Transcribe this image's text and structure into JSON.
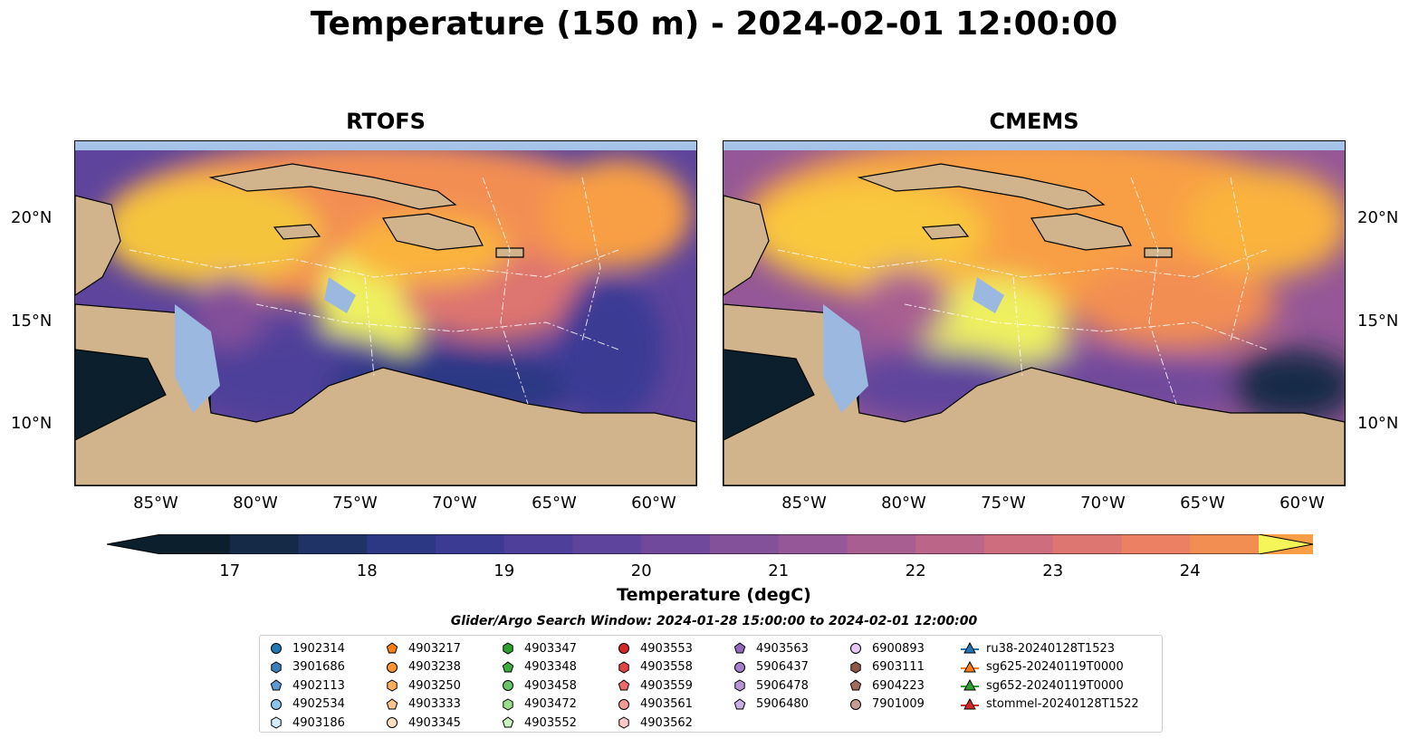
{
  "title": "Temperature (150 m) - 2024-02-01 12:00:00",
  "panels": [
    {
      "title": "RTOFS"
    },
    {
      "title": "CMEMS"
    }
  ],
  "x_ticks": [
    "85°W",
    "80°W",
    "75°W",
    "70°W",
    "65°W",
    "60°W"
  ],
  "y_ticks": [
    "20°N",
    "15°N",
    "10°N"
  ],
  "colorbar": {
    "label": "Temperature (degC)",
    "ticks": [
      "17",
      "18",
      "19",
      "20",
      "21",
      "22",
      "23",
      "24"
    ],
    "min": 16.5,
    "max": 24.5,
    "step": 0.5,
    "colors": [
      "#0c1f2c",
      "#152a47",
      "#1f3367",
      "#2c3884",
      "#3b3b94",
      "#4d3f9a",
      "#5e449c",
      "#71499c",
      "#83509a",
      "#955797",
      "#a85e91",
      "#bb6589",
      "#cd6d7e",
      "#dd7570",
      "#eb8063",
      "#f38e52",
      "#f89f45",
      "#fab33d",
      "#f9c83d",
      "#f5dd4a",
      "#eef060"
    ],
    "extend_low_color": "#0c1f2c",
    "extend_high_color": "#f5f55a"
  },
  "search_window": "Glider/Argo Search Window: 2024-01-28 15:00:00 to 2024-02-01 12:00:00",
  "legend": [
    [
      {
        "label": "1902314",
        "marker": "circle",
        "color": "#1f77b4"
      },
      {
        "label": "3901686",
        "marker": "hexagon",
        "color": "#3c7eb8"
      },
      {
        "label": "4902113",
        "marker": "pentagon",
        "color": "#5b9bd1"
      },
      {
        "label": "4902534",
        "marker": "circle",
        "color": "#8cc3ec"
      },
      {
        "label": "4903186",
        "marker": "hexagon",
        "color": "#d6ecfb"
      }
    ],
    [
      {
        "label": "4903217",
        "marker": "pentagon",
        "color": "#ff7f0e"
      },
      {
        "label": "4903238",
        "marker": "circle",
        "color": "#ff9433"
      },
      {
        "label": "4903250",
        "marker": "hexagon",
        "color": "#ffae5c"
      },
      {
        "label": "4903333",
        "marker": "pentagon",
        "color": "#ffc48c"
      },
      {
        "label": "4903345",
        "marker": "circle",
        "color": "#ffe0c2"
      }
    ],
    [
      {
        "label": "4903347",
        "marker": "hexagon",
        "color": "#2ca02c"
      },
      {
        "label": "4903348",
        "marker": "pentagon",
        "color": "#3cae3c"
      },
      {
        "label": "4903458",
        "marker": "circle",
        "color": "#66c466"
      },
      {
        "label": "4903472",
        "marker": "hexagon",
        "color": "#98df8a"
      },
      {
        "label": "4903552",
        "marker": "pentagon",
        "color": "#ccf2c4"
      }
    ],
    [
      {
        "label": "4903553",
        "marker": "circle",
        "color": "#d62728"
      },
      {
        "label": "4903558",
        "marker": "hexagon",
        "color": "#e04444"
      },
      {
        "label": "4903559",
        "marker": "pentagon",
        "color": "#eb6b6b"
      },
      {
        "label": "4903561",
        "marker": "circle",
        "color": "#f59a9a"
      },
      {
        "label": "4903562",
        "marker": "hexagon",
        "color": "#fcc8c8"
      }
    ],
    [
      {
        "label": "4903563",
        "marker": "pentagon",
        "color": "#9467bd"
      },
      {
        "label": "5906437",
        "marker": "circle",
        "color": "#a47fcb"
      },
      {
        "label": "5906478",
        "marker": "hexagon",
        "color": "#b696d6"
      },
      {
        "label": "5906480",
        "marker": "pentagon",
        "color": "#c9b0e3"
      }
    ],
    [
      {
        "label": "6900893",
        "marker": "circle",
        "color": "#e6c8f4"
      },
      {
        "label": "6903111",
        "marker": "hexagon",
        "color": "#8c564b"
      },
      {
        "label": "6904223",
        "marker": "pentagon",
        "color": "#a3695c"
      },
      {
        "label": "7901009",
        "marker": "circle",
        "color": "#c49c94"
      }
    ],
    [
      {
        "label": "ru38-20240128T1523",
        "marker": "triangle-line",
        "color": "#1f77b4"
      },
      {
        "label": "sg625-20240119T0000",
        "marker": "triangle-line",
        "color": "#ff7f0e"
      },
      {
        "label": "sg652-20240119T0000",
        "marker": "triangle-line",
        "color": "#2ca02c"
      },
      {
        "label": "stommel-20240128T1522",
        "marker": "triangle-line",
        "color": "#d62728"
      }
    ]
  ]
}
